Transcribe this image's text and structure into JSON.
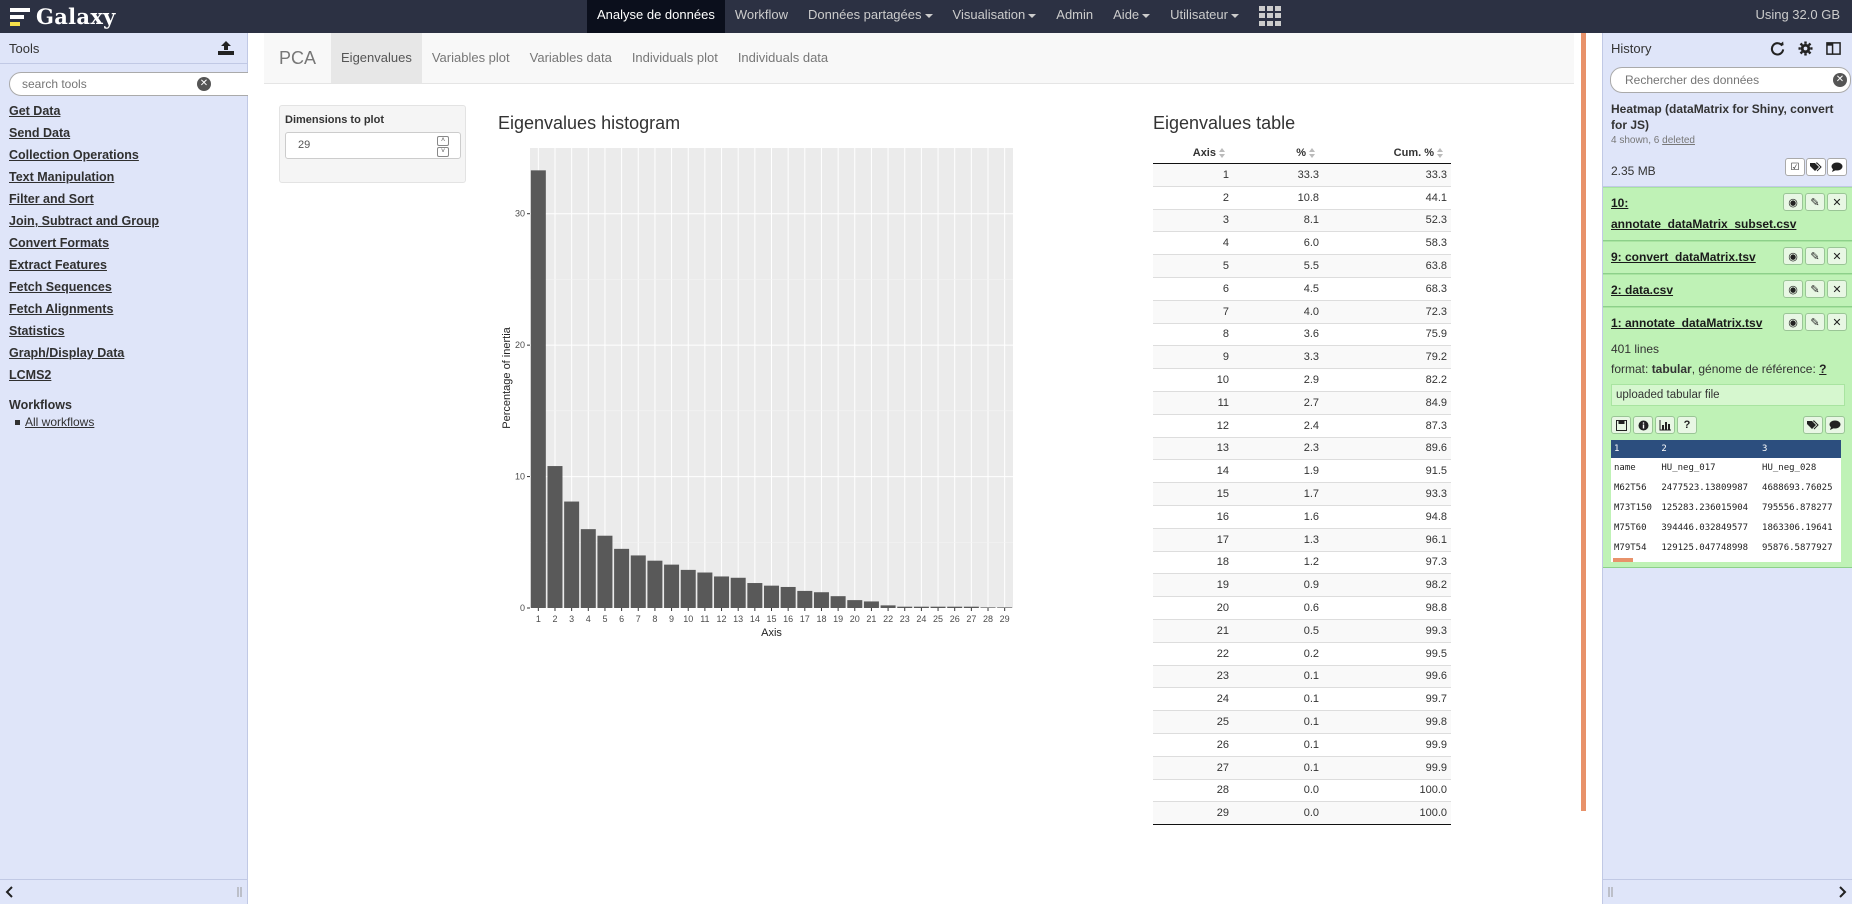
{
  "masthead": {
    "brand": "Galaxy",
    "nav": [
      {
        "label": "Analyse de données",
        "active": true,
        "dropdown": false
      },
      {
        "label": "Workflow",
        "active": false,
        "dropdown": false
      },
      {
        "label": "Données partagées",
        "active": false,
        "dropdown": true
      },
      {
        "label": "Visualisation",
        "active": false,
        "dropdown": true
      },
      {
        "label": "Admin",
        "active": false,
        "dropdown": false
      },
      {
        "label": "Aide",
        "active": false,
        "dropdown": true
      },
      {
        "label": "Utilisateur",
        "active": false,
        "dropdown": true
      }
    ],
    "quota": "Using 32.0 GB"
  },
  "tools": {
    "title": "Tools",
    "search_placeholder": "search tools",
    "sections": [
      "Get Data",
      "Send Data",
      "Collection Operations",
      "Text Manipulation",
      "Filter and Sort",
      "Join, Subtract and Group",
      "Convert Formats",
      "Extract Features",
      "Fetch Sequences",
      "Fetch Alignments",
      "Statistics",
      "Graph/Display Data",
      "LCMS2"
    ],
    "workflows_title": "Workflows",
    "all_workflows": "All workflows"
  },
  "app": {
    "brand": "PCA",
    "tabs": [
      "Eigenvalues",
      "Variables plot",
      "Variables data",
      "Individuals plot",
      "Individuals data"
    ],
    "active_tab": 0,
    "dimensions_label": "Dimensions to plot",
    "dimensions_value": "29",
    "histogram_title": "Eigenvalues histogram",
    "table_title": "Eigenvalues table",
    "table_headers": [
      "Axis",
      "%",
      "Cum. %"
    ]
  },
  "chart_data": {
    "type": "bar",
    "title": "Eigenvalues histogram",
    "xlabel": "Axis",
    "ylabel": "Percentage of inertia",
    "categories": [
      "1",
      "2",
      "3",
      "4",
      "5",
      "6",
      "7",
      "8",
      "9",
      "10",
      "11",
      "12",
      "13",
      "14",
      "15",
      "16",
      "17",
      "18",
      "19",
      "20",
      "21",
      "22",
      "23",
      "24",
      "25",
      "26",
      "27",
      "28",
      "29"
    ],
    "values": [
      33.3,
      10.8,
      8.1,
      6.0,
      5.5,
      4.5,
      4.0,
      3.6,
      3.3,
      2.9,
      2.7,
      2.4,
      2.3,
      1.9,
      1.7,
      1.6,
      1.3,
      1.2,
      0.9,
      0.6,
      0.5,
      0.2,
      0.1,
      0.1,
      0.1,
      0.1,
      0.1,
      0.0,
      0.0
    ],
    "yticks": [
      0,
      10,
      20,
      30
    ],
    "ylim": [
      0,
      35
    ],
    "bar_color": "#595959",
    "panel_bg": "#ebebeb",
    "grid": true
  },
  "table_rows": [
    [
      "1",
      "33.3",
      "33.3"
    ],
    [
      "2",
      "10.8",
      "44.1"
    ],
    [
      "3",
      "8.1",
      "52.3"
    ],
    [
      "4",
      "6.0",
      "58.3"
    ],
    [
      "5",
      "5.5",
      "63.8"
    ],
    [
      "6",
      "4.5",
      "68.3"
    ],
    [
      "7",
      "4.0",
      "72.3"
    ],
    [
      "8",
      "3.6",
      "75.9"
    ],
    [
      "9",
      "3.3",
      "79.2"
    ],
    [
      "10",
      "2.9",
      "82.2"
    ],
    [
      "11",
      "2.7",
      "84.9"
    ],
    [
      "12",
      "2.4",
      "87.3"
    ],
    [
      "13",
      "2.3",
      "89.6"
    ],
    [
      "14",
      "1.9",
      "91.5"
    ],
    [
      "15",
      "1.7",
      "93.3"
    ],
    [
      "16",
      "1.6",
      "94.8"
    ],
    [
      "17",
      "1.3",
      "96.1"
    ],
    [
      "18",
      "1.2",
      "97.3"
    ],
    [
      "19",
      "0.9",
      "98.2"
    ],
    [
      "20",
      "0.6",
      "98.8"
    ],
    [
      "21",
      "0.5",
      "99.3"
    ],
    [
      "22",
      "0.2",
      "99.5"
    ],
    [
      "23",
      "0.1",
      "99.6"
    ],
    [
      "24",
      "0.1",
      "99.7"
    ],
    [
      "25",
      "0.1",
      "99.8"
    ],
    [
      "26",
      "0.1",
      "99.9"
    ],
    [
      "27",
      "0.1",
      "99.9"
    ],
    [
      "28",
      "0.0",
      "100.0"
    ],
    [
      "29",
      "0.0",
      "100.0"
    ]
  ],
  "history": {
    "title": "History",
    "search_placeholder": "Rechercher des données",
    "name": "Heatmap (dataMatrix for Shiny, convert for JS)",
    "shown": "4 shown, 6",
    "deleted": "deleted",
    "size": "2.35 MB",
    "datasets": [
      {
        "name": "10: annotate_dataMatrix_subset.csv"
      },
      {
        "name": "9: convert_dataMatrix.tsv"
      },
      {
        "name": "2: data.csv"
      },
      {
        "name": "1: annotate_dataMatrix.tsv"
      }
    ],
    "expanded": {
      "lines": "401 lines",
      "format_label": "format:",
      "format_value": "tabular",
      "genome_label": ", génome de référence:",
      "genome_value": "?",
      "info": "uploaded tabular file",
      "peek_header": [
        "1",
        "2",
        "3"
      ],
      "peek_rows": [
        [
          "name",
          "HU_neg_017",
          "HU_neg_028"
        ],
        [
          "M62T56",
          "2477523.13809987",
          "4688693.76025"
        ],
        [
          "M73T150",
          "125283.236015904",
          "795556.878277"
        ],
        [
          "M75T60",
          "394446.032849577",
          "1863306.19641"
        ],
        [
          "M79T54",
          "129125.047748998",
          "95876.5877927"
        ]
      ]
    }
  }
}
